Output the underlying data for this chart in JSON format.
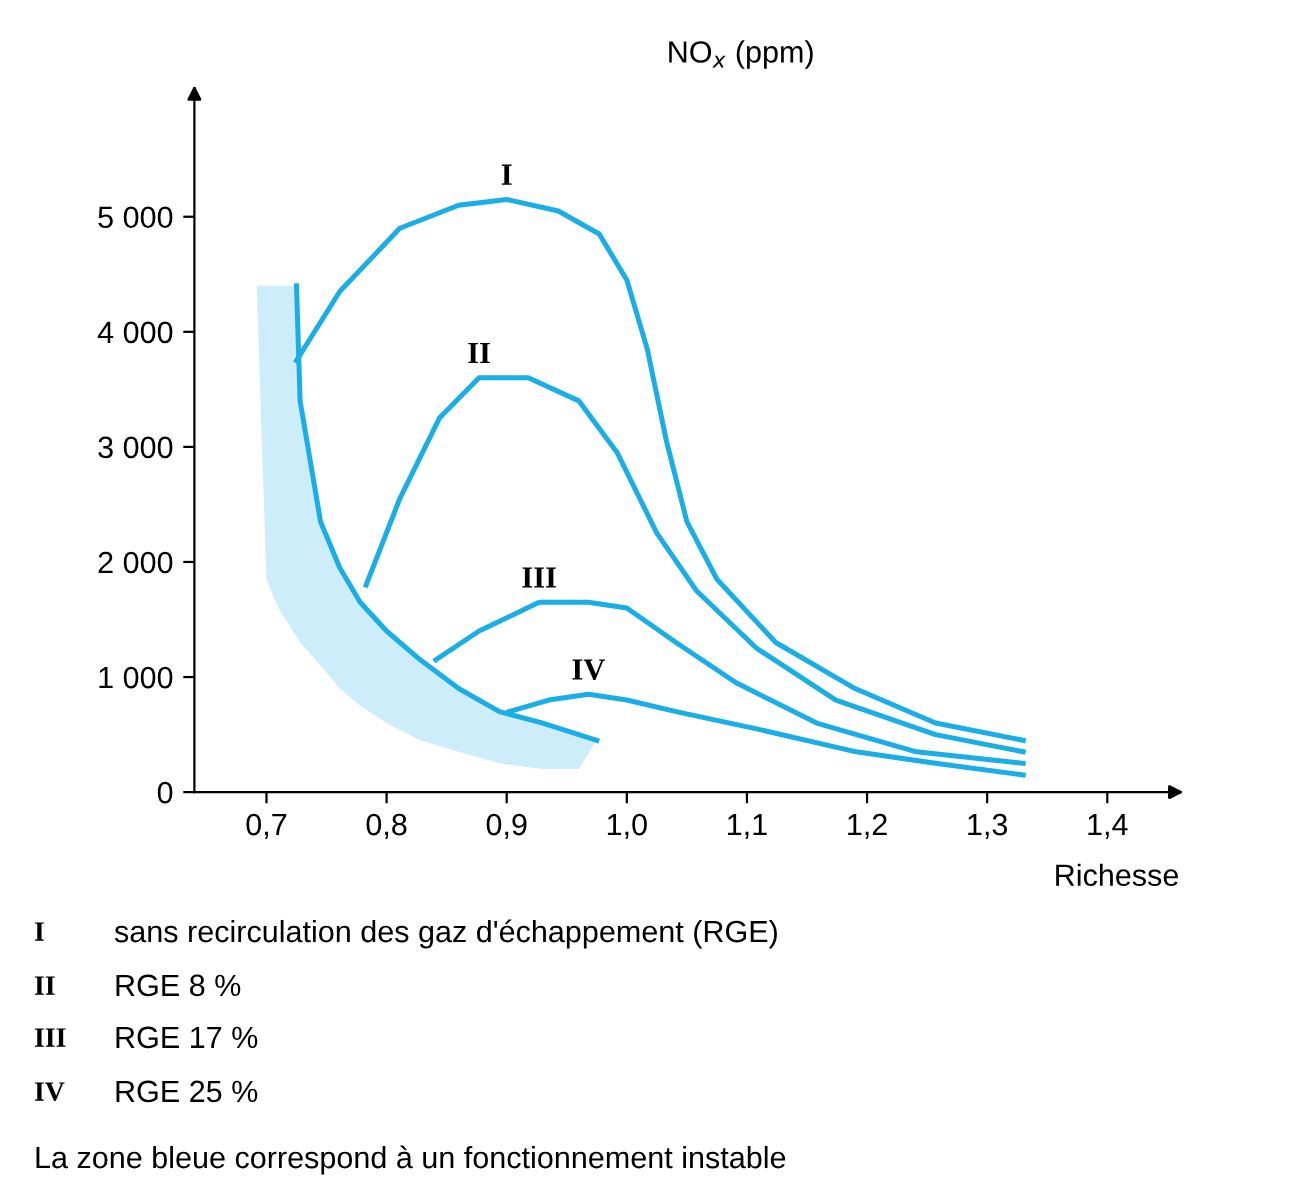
{
  "chart_data": {
    "type": "line",
    "ylabel": "NO$_{x}$ (ppm)",
    "xlabel": "Richesse",
    "xlim": [
      0.64,
      1.46
    ],
    "ylim": [
      0,
      6100
    ],
    "xticks": [
      {
        "value": 0.7,
        "label": "0,7"
      },
      {
        "value": 0.8,
        "label": "0,8"
      },
      {
        "value": 0.9,
        "label": "0,9"
      },
      {
        "value": 1.0,
        "label": "1,0"
      },
      {
        "value": 1.1,
        "label": "1,1"
      },
      {
        "value": 1.2,
        "label": "1,2"
      },
      {
        "value": 1.3,
        "label": "1,3"
      },
      {
        "value": 1.4,
        "label": "1,4"
      }
    ],
    "yticks": [
      0,
      {
        "value": 1000,
        "label": "1 000"
      },
      {
        "value": 2000,
        "label": "2 000"
      },
      {
        "value": 3000,
        "label": "3 000"
      },
      {
        "value": 4000,
        "label": "4 000"
      },
      {
        "value": 5000,
        "label": "5 000"
      }
    ],
    "grid": false,
    "series": [
      {
        "color": "#1aaee6",
        "x": [
          0.692,
          0.7,
          0.71,
          0.725,
          0.728,
          0.745,
          0.761,
          0.778,
          0.8,
          0.828,
          0.86,
          0.894,
          0.93,
          0.96,
          0.975
        ],
        "values": [
          null,
          null,
          null,
          4400,
          3400,
          2350,
          1950,
          1650,
          1400,
          1150,
          900,
          700,
          600,
          500,
          450
        ],
        "upper": [
          4400,
          4400,
          4400,
          4400,
          3400,
          2350,
          1950,
          1650,
          1400,
          1150,
          900,
          700,
          600,
          500,
          450
        ],
        "lower": [
          4350,
          1850,
          1600,
          1350,
          1300,
          1100,
          900,
          750,
          600,
          450,
          350,
          250,
          200,
          200,
          450
        ]
      },
      {
        "name": "I",
        "color": "#1aaee6",
        "x": [
          0.725,
          0.761,
          0.811,
          0.86,
          0.9,
          0.943,
          0.977,
          1.0,
          1.017,
          1.033,
          1.05,
          1.075,
          1.124,
          1.19,
          1.257,
          1.33
        ],
        "values": [
          3750,
          4350,
          4900,
          5100,
          5150,
          5050,
          4850,
          4450,
          3850,
          3050,
          2350,
          1850,
          1300,
          900,
          600,
          450
        ]
      },
      {
        "name": "II",
        "color": "#1aaee6",
        "x": [
          0.783,
          0.811,
          0.844,
          0.877,
          0.918,
          0.96,
          0.992,
          1.025,
          1.058,
          1.108,
          1.174,
          1.257,
          1.33
        ],
        "values": [
          1800,
          2550,
          3250,
          3600,
          3600,
          3400,
          2950,
          2250,
          1750,
          1250,
          800,
          500,
          350
        ]
      },
      {
        "name": "III",
        "color": "#1aaee6",
        "x": [
          0.841,
          0.877,
          0.927,
          0.968,
          1.0,
          1.041,
          1.091,
          1.158,
          1.241,
          1.33
        ],
        "values": [
          1150,
          1400,
          1650,
          1650,
          1600,
          1300,
          950,
          600,
          350,
          250
        ]
      },
      {
        "name": "IV",
        "color": "#1aaee6",
        "x": [
          0.902,
          0.935,
          0.968,
          1.0,
          1.041,
          1.108,
          1.191,
          1.257,
          1.33
        ],
        "values": [
          700,
          800,
          850,
          800,
          700,
          550,
          350,
          250,
          150
        ]
      }
    ],
    "annotations": [
      "sans recirculation des gaz d'échappement (RGE)",
      "RGE 8 %",
      "RGE 17 %",
      "RGE 25 %",
      "La zone bleue correspond à un fonctionnement instable"
    ]
  }
}
